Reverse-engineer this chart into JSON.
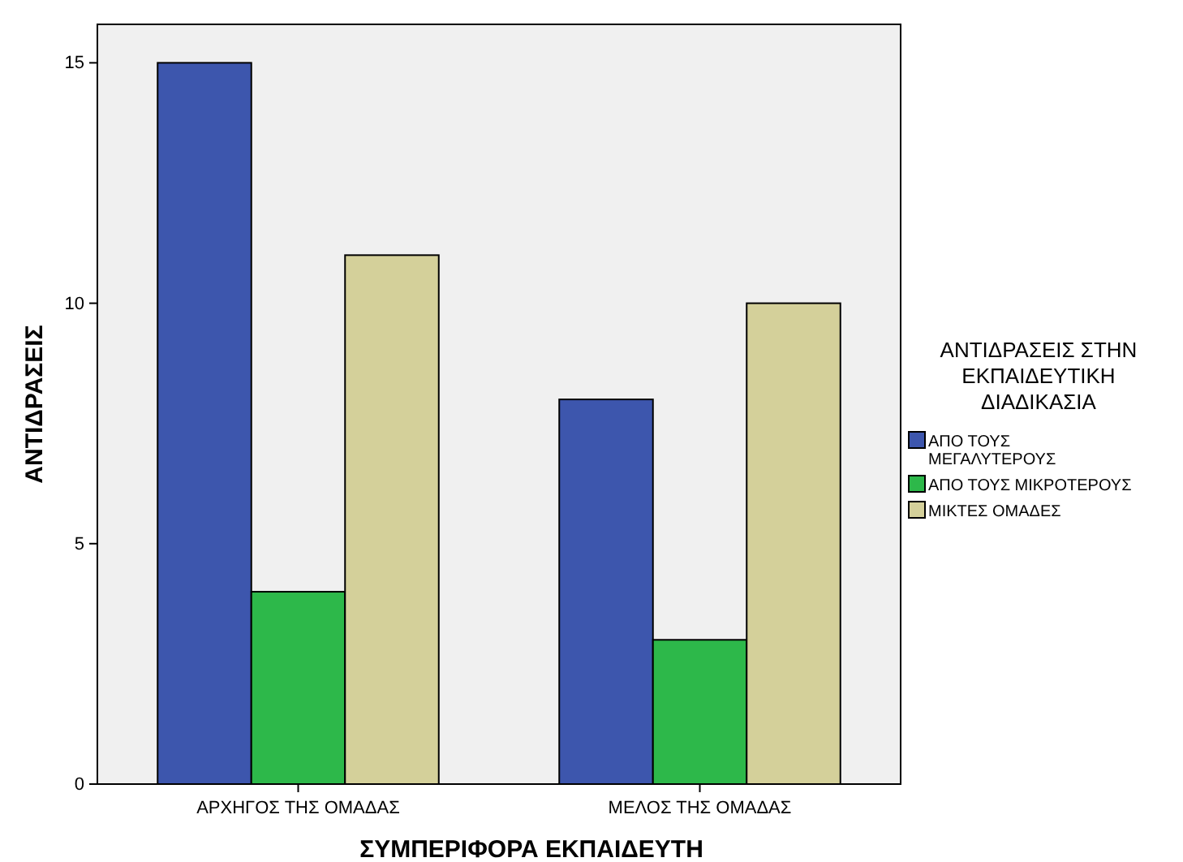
{
  "chart_data": {
    "type": "bar",
    "xlabel": "ΣΥΜΠΕΡΙΦΟΡΑ ΕΚΠΑΙΔΕΥΤΗ",
    "ylabel": "ΑΝΤΙΔΡΑΣΕΙΣ",
    "legend_title": "ΑΝΤΙΔΡΑΣΕΙΣ ΣΤΗΝ ΕΚΠΑΙΔΕΥΤΙΚΗ ΔΙΑΔΙΚΑΣΙΑ",
    "categories": [
      "ΑΡΧΗΓΟΣ ΤΗΣ ΟΜΑΔΑΣ",
      "ΜΕΛΟΣ ΤΗΣ ΟΜΑΔΑΣ"
    ],
    "series": [
      {
        "name": "ΑΠΟ ΤΟΥΣ ΜΕΓΑΛΥΤΕΡΟΥΣ",
        "color": "#3d56ad",
        "values": [
          15,
          8
        ]
      },
      {
        "name": "ΑΠΟ ΤΟΥΣ ΜΙΚΡΟΤΕΡΟΥΣ",
        "color": "#2db84a",
        "values": [
          4,
          3
        ]
      },
      {
        "name": "ΜΙΚΤΕΣ ΟΜΑΔΕΣ",
        "color": "#d4d09a",
        "values": [
          11,
          10
        ]
      }
    ],
    "ylim": [
      0,
      15.8
    ],
    "yticks": [
      0,
      5,
      10,
      15
    ],
    "legend": "right",
    "grid": false
  }
}
